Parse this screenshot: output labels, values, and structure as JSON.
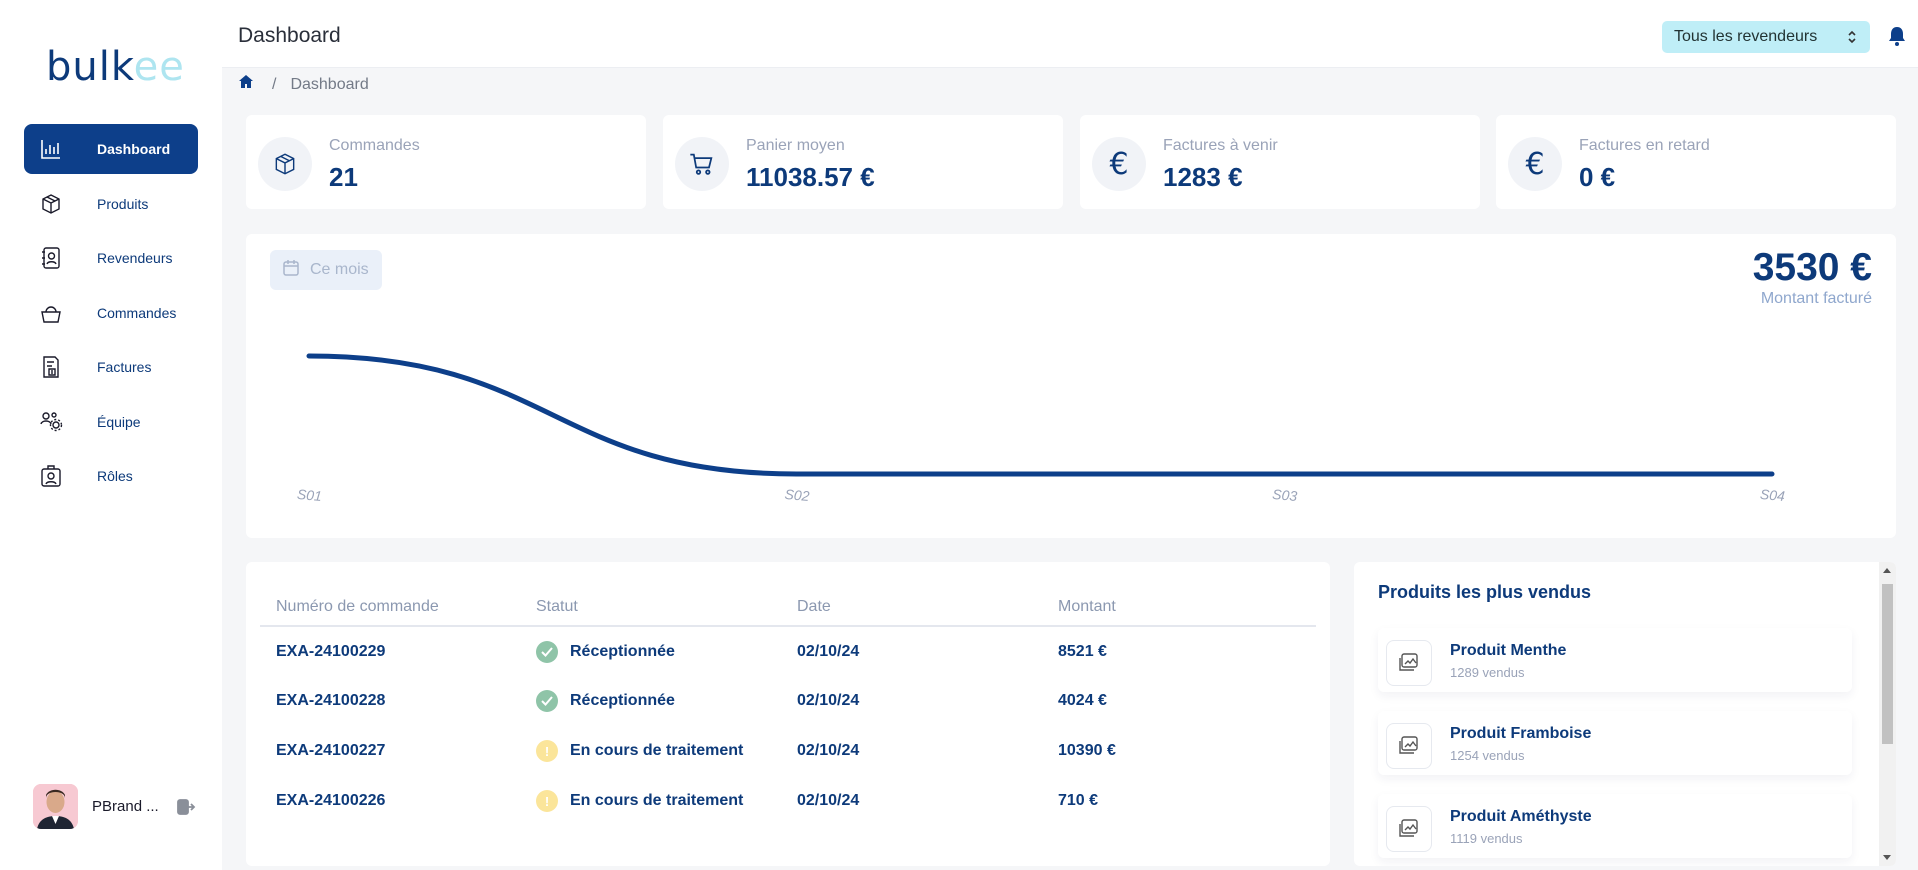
{
  "app": {
    "logo_part1": "bulk",
    "logo_part2": "ee",
    "page_title": "Dashboard"
  },
  "sidebar": {
    "items": [
      {
        "label": "Dashboard",
        "icon": "bar-chart-icon",
        "active": true
      },
      {
        "label": "Produits",
        "icon": "box-icon"
      },
      {
        "label": "Revendeurs",
        "icon": "contact-book-icon"
      },
      {
        "label": "Commandes",
        "icon": "basket-icon"
      },
      {
        "label": "Factures",
        "icon": "invoice-icon"
      },
      {
        "label": "Équipe",
        "icon": "team-icon"
      },
      {
        "label": "Rôles",
        "icon": "role-badge-icon"
      }
    ],
    "user": {
      "name": "PBrand ...",
      "icon": "logout-icon"
    }
  },
  "header": {
    "reseller_select": "Tous les revendeurs",
    "breadcrumb": [
      "Dashboard"
    ]
  },
  "stats": [
    {
      "label": "Commandes",
      "value": "21",
      "icon": "box-icon"
    },
    {
      "label": "Panier moyen",
      "value": "11038.57 €",
      "icon": "cart-icon"
    },
    {
      "label": "Factures à venir",
      "value": "1283 €",
      "icon": "euro-icon"
    },
    {
      "label": "Factures en retard",
      "value": "0 €",
      "icon": "euro-icon"
    }
  ],
  "revenue": {
    "period": "Ce mois",
    "total": "3530 €",
    "total_label": "Montant facturé"
  },
  "chart_data": {
    "type": "line",
    "categories": [
      "S01",
      "S02",
      "S03",
      "S04"
    ],
    "series": [
      {
        "values": [
          3530,
          0,
          0,
          0
        ]
      }
    ],
    "color": "#0d3f8a",
    "grid": false
  },
  "orders": {
    "columns": [
      "Numéro de commande",
      "Statut",
      "Date",
      "Montant"
    ],
    "rows": [
      {
        "number": "EXA-24100229",
        "status": "Réceptionnée",
        "state": "done",
        "date": "02/10/24",
        "amount": "8521 €"
      },
      {
        "number": "EXA-24100228",
        "status": "Réceptionnée",
        "state": "done",
        "date": "02/10/24",
        "amount": "4024 €"
      },
      {
        "number": "EXA-24100227",
        "status": "En cours de traitement",
        "state": "pending",
        "date": "02/10/24",
        "amount": "10390 €"
      },
      {
        "number": "EXA-24100226",
        "status": "En cours de traitement",
        "state": "pending",
        "date": "02/10/24",
        "amount": "710 €"
      }
    ]
  },
  "top_products": {
    "title": "Produits les plus vendus",
    "items": [
      {
        "name": "Produit Menthe",
        "sold": "1289 vendus"
      },
      {
        "name": "Produit Framboise",
        "sold": "1254 vendus"
      },
      {
        "name": "Produit Améthyste",
        "sold": "1119 vendus"
      }
    ]
  },
  "colors": {
    "primary": "#0d3f8a",
    "accent": "#aee5f0",
    "success": "#8fc4a8",
    "warning": "#fbe59a"
  }
}
